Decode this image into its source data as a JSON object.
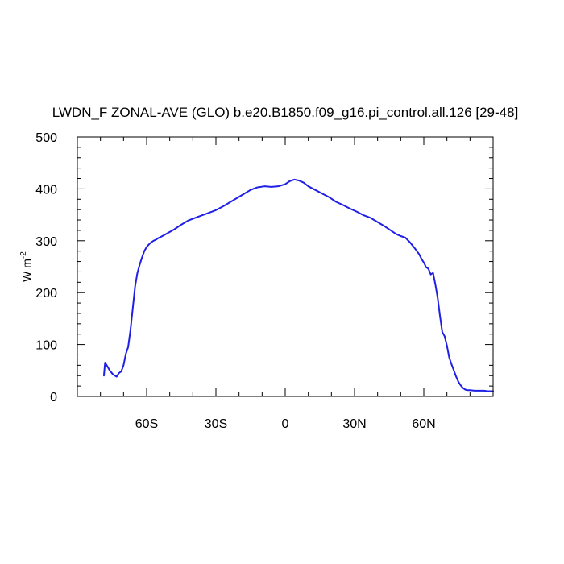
{
  "chart_data": {
    "type": "line",
    "title": "LWDN_F ZONAL-AVE (GLO) b.e20.B1850.f09_g16.pi_control.all.126 [29-48]",
    "ylabel_main": "W m",
    "ylabel_sup": "-2",
    "xlim": [
      -90,
      90
    ],
    "ylim": [
      0,
      500
    ],
    "x_ticks": [
      {
        "value": -60,
        "label": "60S"
      },
      {
        "value": -30,
        "label": "30S"
      },
      {
        "value": 0,
        "label": "0"
      },
      {
        "value": 30,
        "label": "30N"
      },
      {
        "value": 60,
        "label": "60N"
      }
    ],
    "y_ticks": [
      {
        "value": 0,
        "label": "0"
      },
      {
        "value": 100,
        "label": "100"
      },
      {
        "value": 200,
        "label": "200"
      },
      {
        "value": 300,
        "label": "300"
      },
      {
        "value": 400,
        "label": "400"
      },
      {
        "value": 500,
        "label": "500"
      }
    ],
    "grid": false,
    "series": [
      {
        "color": "#1f1fe6",
        "x": [
          -78.5,
          -78,
          -77,
          -76,
          -74.5,
          -73,
          -72,
          -71,
          -70,
          -69,
          -68,
          -67,
          -66,
          -65,
          -64,
          -63,
          -62,
          -61,
          -60,
          -59,
          -58,
          -57,
          -56,
          -55,
          -54,
          -52,
          -50,
          -48,
          -45,
          -42,
          -39,
          -36,
          -33,
          -30,
          -27,
          -24,
          -21,
          -18,
          -15,
          -12,
          -9,
          -6,
          -3,
          0,
          2,
          4,
          6,
          8,
          10,
          13,
          16,
          19,
          22,
          25,
          28,
          31,
          34,
          37,
          40,
          43,
          46,
          48,
          50,
          52,
          54,
          56,
          58,
          59,
          60,
          61,
          62,
          63,
          64,
          65,
          66,
          67,
          68,
          69,
          70,
          71,
          72,
          73,
          74,
          75,
          76,
          77,
          78,
          79,
          80,
          82,
          84,
          86,
          88,
          90
        ],
        "y": [
          40,
          65,
          58,
          50,
          42,
          38,
          45,
          48,
          60,
          82,
          95,
          128,
          170,
          212,
          238,
          254,
          268,
          280,
          288,
          293,
          297,
          300,
          302,
          305,
          307,
          312,
          317,
          322,
          331,
          339,
          344,
          349,
          354,
          359,
          366,
          374,
          382,
          390,
          398,
          403,
          405,
          404,
          405,
          409,
          415,
          418,
          416,
          412,
          405,
          398,
          391,
          384,
          375,
          369,
          362,
          356,
          349,
          344,
          336,
          328,
          319,
          313,
          309,
          306,
          297,
          286,
          274,
          265,
          258,
          249,
          246,
          235,
          238,
          216,
          190,
          155,
          124,
          116,
          98,
          75,
          62,
          50,
          38,
          28,
          21,
          16,
          13,
          12,
          12,
          11,
          11,
          11,
          10,
          10
        ]
      }
    ]
  }
}
